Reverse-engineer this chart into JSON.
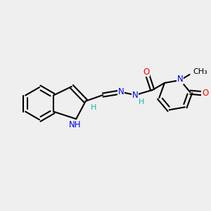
{
  "bg_color": "#efefef",
  "bond_color": "#000000",
  "bond_width": 1.5,
  "atom_colors": {
    "N": "#0000ee",
    "O": "#ff0000",
    "H_teal": "#20b2aa"
  },
  "font_size": 8.5,
  "fig_width": 3.0,
  "fig_height": 3.0,
  "dpi": 100,
  "xlim": [
    0,
    10
  ],
  "ylim": [
    0,
    10
  ]
}
